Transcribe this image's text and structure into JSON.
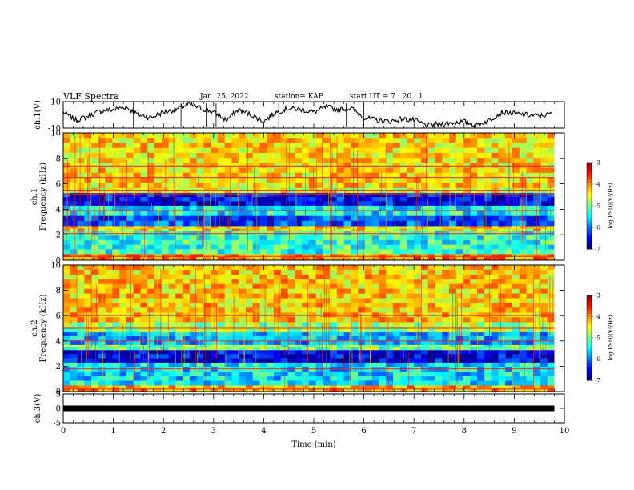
{
  "header": {
    "title": "VLF Spectra",
    "date": "Jan. 25, 2022",
    "station": "station= KAP",
    "start": "start  UT =   7 : 20 : 1"
  },
  "chart_data": [
    {
      "type": "line",
      "ylabel": "ch.1(V)",
      "ylim": [
        -10,
        10
      ],
      "yticks": [
        "10",
        "-10"
      ],
      "xlim": [
        0,
        10
      ],
      "x": [
        0,
        0.25,
        0.5,
        0.75,
        1.0,
        1.25,
        1.5,
        1.75,
        2.0,
        2.25,
        2.5,
        2.75,
        3.0,
        3.25,
        3.5,
        3.75,
        4.0,
        4.25,
        4.5,
        4.75,
        5.0,
        5.25,
        5.5,
        5.75,
        6.0,
        6.25,
        6.5,
        6.75,
        7.0,
        7.25,
        7.5,
        7.75,
        8.0,
        8.25,
        8.5,
        8.75,
        9.0,
        9.25,
        9.5,
        9.75
      ],
      "values": [
        2,
        -4,
        -1,
        3,
        4,
        6,
        0,
        -2,
        2,
        4,
        8,
        5,
        2,
        -4,
        4,
        0,
        -5,
        2,
        5,
        4,
        2,
        6,
        4,
        5,
        -2,
        -4,
        -5,
        -3,
        -4,
        -8,
        -7,
        -6,
        -5,
        -8,
        -4,
        2,
        1,
        0,
        -1,
        1
      ],
      "color": "#000000"
    },
    {
      "type": "heatmap",
      "channel": "ch.1",
      "ylabel": "Frequency (kHz)",
      "ylim": [
        0,
        10
      ],
      "yticks": [
        "0",
        "2",
        "4",
        "6",
        "8",
        "10"
      ],
      "xlim": [
        0,
        10
      ],
      "colorbar": {
        "label": "log(PSD)(V²/Hz)",
        "range": [
          -7,
          -3
        ],
        "ticks": [
          "-3",
          "-4",
          "-5",
          "-6",
          "-7"
        ]
      },
      "bands_khz": [
        {
          "f": [
            0,
            0.5
          ],
          "level": -4.0
        },
        {
          "f": [
            0.5,
            2.3
          ],
          "level": -5.3
        },
        {
          "f": [
            2.3,
            2.7
          ],
          "level": -4.4
        },
        {
          "f": [
            2.7,
            3.5
          ],
          "level": -6.2
        },
        {
          "f": [
            3.5,
            4.3
          ],
          "level": -5.5
        },
        {
          "f": [
            4.3,
            5.3
          ],
          "level": -6.5
        },
        {
          "f": [
            5.3,
            5.7
          ],
          "level": -4.6
        },
        {
          "f": [
            5.7,
            10
          ],
          "level": -4.4
        }
      ],
      "lines_khz": [
        0.3,
        2.1,
        3.9,
        5.2,
        5.5,
        6.5,
        7.4
      ]
    },
    {
      "type": "heatmap",
      "channel": "ch.2",
      "ylabel": "Frequency (kHz)",
      "ylim": [
        0,
        10
      ],
      "yticks": [
        "0",
        "2",
        "4",
        "6",
        "8",
        "10"
      ],
      "xlim": [
        0,
        10
      ],
      "colorbar": {
        "label": "log(PSD)(V²/Hz)",
        "range": [
          -7,
          -3
        ],
        "ticks": [
          "-3",
          "-4",
          "-5",
          "-6",
          "-7"
        ]
      },
      "bands_khz": [
        {
          "f": [
            0,
            0.5
          ],
          "level": -4.2
        },
        {
          "f": [
            0.5,
            2.3
          ],
          "level": -5.6
        },
        {
          "f": [
            2.3,
            3.3
          ],
          "level": -6.6
        },
        {
          "f": [
            3.3,
            3.7
          ],
          "level": -5.0
        },
        {
          "f": [
            3.7,
            4.7
          ],
          "level": -5.8
        },
        {
          "f": [
            4.7,
            5.5
          ],
          "level": -4.9
        },
        {
          "f": [
            5.5,
            10
          ],
          "level": -4.3
        }
      ],
      "lines_khz": [
        0.2,
        1.8,
        3.2,
        4.0,
        5.0,
        6.0
      ]
    },
    {
      "type": "line",
      "ylabel": "ch.3(V)",
      "xlabel": "Time (min)",
      "ylim": [
        -5,
        5
      ],
      "yticks": [
        "5",
        "0",
        "-5"
      ],
      "xlim": [
        0,
        10
      ],
      "xticks": [
        "0",
        "1",
        "2",
        "3",
        "4",
        "5",
        "6",
        "7",
        "8",
        "9",
        "10"
      ],
      "x": [
        0,
        9.8
      ],
      "values": [
        0,
        0
      ],
      "color": "#000000"
    }
  ]
}
